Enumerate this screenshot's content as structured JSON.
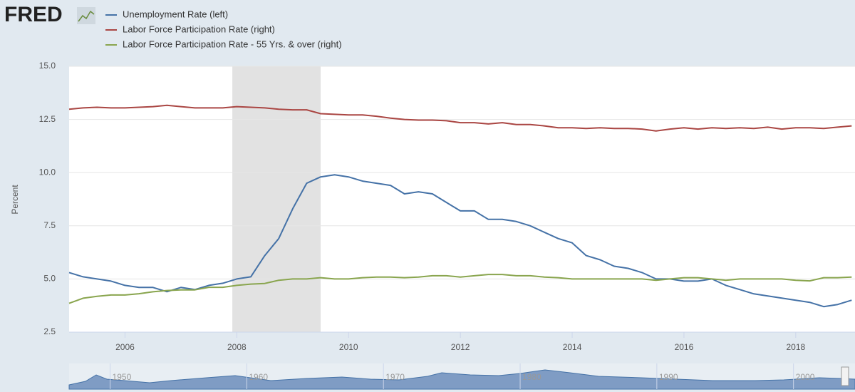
{
  "logo": "FRED",
  "chart_data": {
    "type": "line",
    "ylabel": "Percent",
    "x": [
      2005,
      2005.25,
      2005.5,
      2005.75,
      2006,
      2006.25,
      2006.5,
      2006.75,
      2007,
      2007.25,
      2007.5,
      2007.75,
      2008,
      2008.25,
      2008.5,
      2008.75,
      2009,
      2009.25,
      2009.5,
      2009.75,
      2010,
      2010.25,
      2010.5,
      2010.75,
      2011,
      2011.25,
      2011.5,
      2011.75,
      2012,
      2012.25,
      2012.5,
      2012.75,
      2013,
      2013.25,
      2013.5,
      2013.75,
      2014,
      2014.25,
      2014.5,
      2014.75,
      2015,
      2015.25,
      2015.5,
      2015.75,
      2016,
      2016.25,
      2016.5,
      2016.75,
      2017,
      2017.25,
      2017.5,
      2017.75,
      2018,
      2018.25,
      2018.5,
      2018.75,
      2019
    ],
    "series": [
      {
        "name": "Unemployment Rate (left)",
        "color": "#4572a7",
        "values": [
          5.3,
          5.1,
          5.0,
          4.9,
          4.7,
          4.6,
          4.6,
          4.4,
          4.6,
          4.5,
          4.7,
          4.8,
          5.0,
          5.1,
          6.1,
          6.9,
          8.3,
          9.5,
          9.8,
          9.9,
          9.8,
          9.6,
          9.5,
          9.4,
          9.0,
          9.1,
          9.0,
          8.6,
          8.2,
          8.2,
          7.8,
          7.8,
          7.7,
          7.5,
          7.2,
          6.9,
          6.7,
          6.1,
          5.9,
          5.6,
          5.5,
          5.3,
          5.0,
          5.0,
          4.9,
          4.9,
          5.0,
          4.7,
          4.5,
          4.3,
          4.2,
          4.1,
          4.0,
          3.9,
          3.7,
          3.8,
          4.0
        ]
      },
      {
        "name": "Labor Force Participation Rate (right)",
        "color": "#aa4643",
        "axis": "y2",
        "values": [
          65.8,
          66.0,
          66.1,
          66.0,
          66.0,
          66.1,
          66.2,
          66.4,
          66.2,
          66.0,
          66.0,
          66.0,
          66.2,
          66.1,
          66.0,
          65.8,
          65.7,
          65.7,
          65.1,
          65.0,
          64.9,
          64.9,
          64.7,
          64.4,
          64.2,
          64.1,
          64.1,
          64.0,
          63.7,
          63.7,
          63.5,
          63.7,
          63.4,
          63.4,
          63.2,
          62.9,
          62.9,
          62.8,
          62.9,
          62.8,
          62.8,
          62.7,
          62.4,
          62.7,
          62.9,
          62.7,
          62.9,
          62.8,
          62.9,
          62.8,
          63.0,
          62.7,
          62.9,
          62.9,
          62.8,
          63.0,
          63.2
        ]
      },
      {
        "name": "Labor Force Participation Rate - 55 Yrs. & over (right)",
        "color": "#89a54e",
        "axis": "y2",
        "values": [
          35.5,
          36.3,
          36.6,
          36.8,
          36.8,
          37.0,
          37.3,
          37.5,
          37.6,
          37.6,
          38.0,
          38.0,
          38.3,
          38.5,
          38.6,
          39.1,
          39.3,
          39.3,
          39.5,
          39.3,
          39.3,
          39.5,
          39.6,
          39.6,
          39.5,
          39.6,
          39.8,
          39.8,
          39.6,
          39.8,
          40.0,
          40.0,
          39.8,
          39.8,
          39.6,
          39.5,
          39.3,
          39.3,
          39.3,
          39.3,
          39.3,
          39.3,
          39.1,
          39.3,
          39.5,
          39.5,
          39.3,
          39.1,
          39.3,
          39.3,
          39.3,
          39.3,
          39.1,
          39.0,
          39.5,
          39.5,
          39.6
        ]
      }
    ],
    "xlim": [
      2005,
      2019.06
    ],
    "xticks": [
      2006,
      2008,
      2010,
      2012,
      2014,
      2016,
      2018
    ],
    "ylim": [
      2.5,
      15
    ],
    "yticks": [
      {
        "value": 2.5,
        "label": "2.5"
      },
      {
        "value": 5,
        "label": "5.0"
      },
      {
        "value": 7.5,
        "label": "7.5"
      },
      {
        "value": 10,
        "label": "10.0"
      },
      {
        "value": 12.5,
        "label": "12.5"
      },
      {
        "value": 15,
        "label": "15.0"
      }
    ],
    "y2lim": [
      31,
      72.5
    ],
    "shaded_ranges": [
      [
        2007.92,
        2009.5
      ]
    ],
    "grid": true,
    "navigator": {
      "xlim": [
        1947,
        2004.5
      ],
      "xticks": [
        1950,
        1960,
        1970,
        1980,
        1990,
        2000
      ]
    }
  }
}
